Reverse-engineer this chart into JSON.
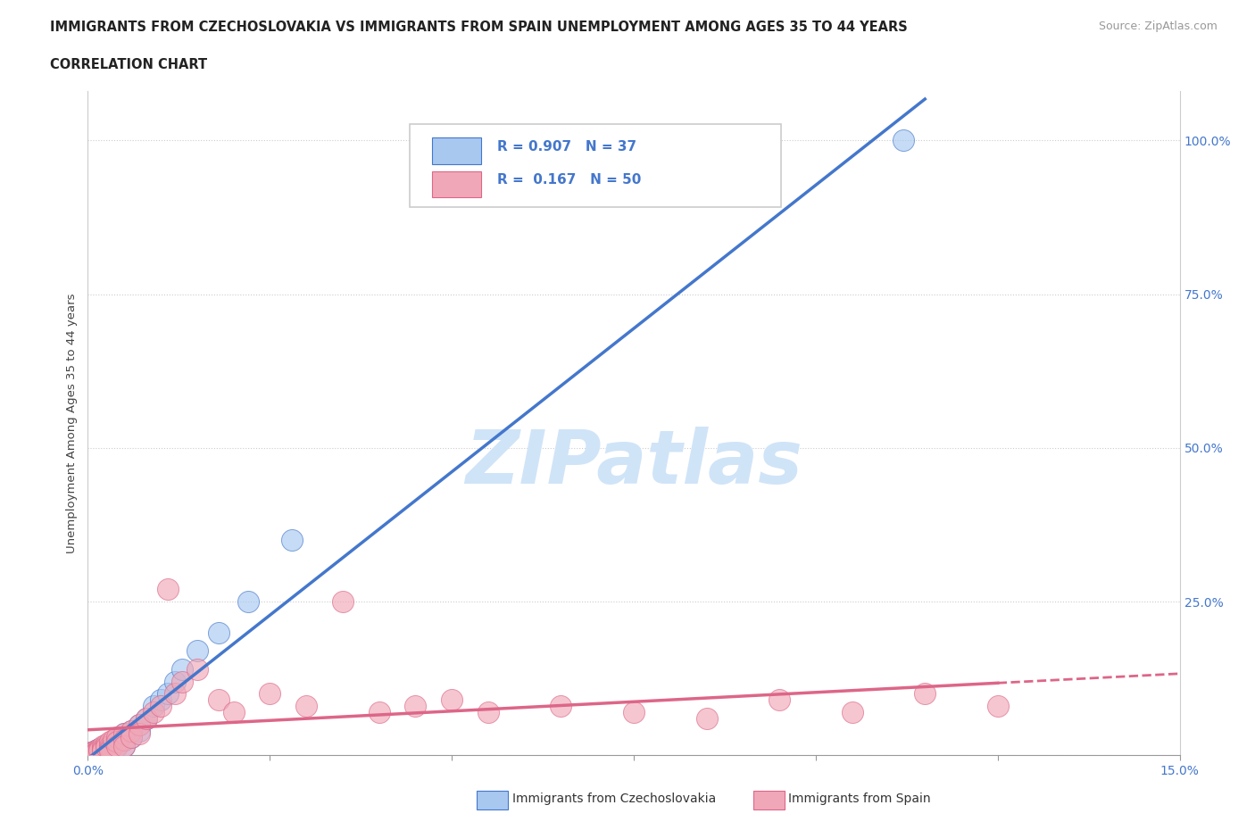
{
  "title_line1": "IMMIGRANTS FROM CZECHOSLOVAKIA VS IMMIGRANTS FROM SPAIN UNEMPLOYMENT AMONG AGES 35 TO 44 YEARS",
  "title_line2": "CORRELATION CHART",
  "source_text": "Source: ZipAtlas.com",
  "ylabel": "Unemployment Among Ages 35 to 44 years",
  "x_min": 0.0,
  "x_max": 0.15,
  "y_min": 0.0,
  "y_max": 1.08,
  "legend_R1": "R = 0.907",
  "legend_N1": "N = 37",
  "legend_R2": "R =  0.167",
  "legend_N2": "N = 50",
  "color_czech": "#A8C8F0",
  "color_spain": "#F0A8B8",
  "color_czech_dark": "#4477CC",
  "color_spain_dark": "#DD6688",
  "color_text_blue": "#4477CC",
  "watermark_text": "ZIPatlas",
  "watermark_color": "#D0E4F8",
  "legend_label_czech": "Immigrants from Czechoslovakia",
  "legend_label_spain": "Immigrants from Spain",
  "czech_x": [
    0.0005,
    0.001,
    0.001,
    0.0015,
    0.0015,
    0.002,
    0.002,
    0.002,
    0.0025,
    0.0025,
    0.003,
    0.003,
    0.003,
    0.003,
    0.0035,
    0.0035,
    0.004,
    0.004,
    0.0045,
    0.005,
    0.005,
    0.005,
    0.006,
    0.006,
    0.007,
    0.007,
    0.008,
    0.009,
    0.01,
    0.011,
    0.012,
    0.013,
    0.015,
    0.018,
    0.022,
    0.028,
    0.112
  ],
  "czech_y": [
    0.005,
    0.008,
    0.005,
    0.01,
    0.007,
    0.012,
    0.009,
    0.007,
    0.015,
    0.01,
    0.018,
    0.013,
    0.01,
    0.008,
    0.02,
    0.015,
    0.025,
    0.018,
    0.03,
    0.035,
    0.025,
    0.015,
    0.04,
    0.03,
    0.05,
    0.04,
    0.06,
    0.08,
    0.09,
    0.1,
    0.12,
    0.14,
    0.17,
    0.2,
    0.25,
    0.35,
    1.0
  ],
  "spain_x": [
    0.0005,
    0.0005,
    0.001,
    0.001,
    0.001,
    0.0015,
    0.0015,
    0.002,
    0.002,
    0.002,
    0.0025,
    0.0025,
    0.003,
    0.003,
    0.003,
    0.003,
    0.0035,
    0.004,
    0.004,
    0.004,
    0.005,
    0.005,
    0.005,
    0.006,
    0.006,
    0.007,
    0.007,
    0.008,
    0.009,
    0.01,
    0.011,
    0.012,
    0.013,
    0.015,
    0.018,
    0.02,
    0.025,
    0.03,
    0.035,
    0.04,
    0.045,
    0.05,
    0.055,
    0.065,
    0.075,
    0.085,
    0.095,
    0.105,
    0.115,
    0.125
  ],
  "spain_y": [
    0.005,
    0.003,
    0.008,
    0.005,
    0.003,
    0.01,
    0.007,
    0.015,
    0.01,
    0.007,
    0.018,
    0.013,
    0.022,
    0.015,
    0.01,
    0.007,
    0.025,
    0.03,
    0.022,
    0.015,
    0.035,
    0.025,
    0.015,
    0.04,
    0.03,
    0.05,
    0.035,
    0.06,
    0.07,
    0.08,
    0.27,
    0.1,
    0.12,
    0.14,
    0.09,
    0.07,
    0.1,
    0.08,
    0.25,
    0.07,
    0.08,
    0.09,
    0.07,
    0.08,
    0.07,
    0.06,
    0.09,
    0.07,
    0.1,
    0.08
  ]
}
